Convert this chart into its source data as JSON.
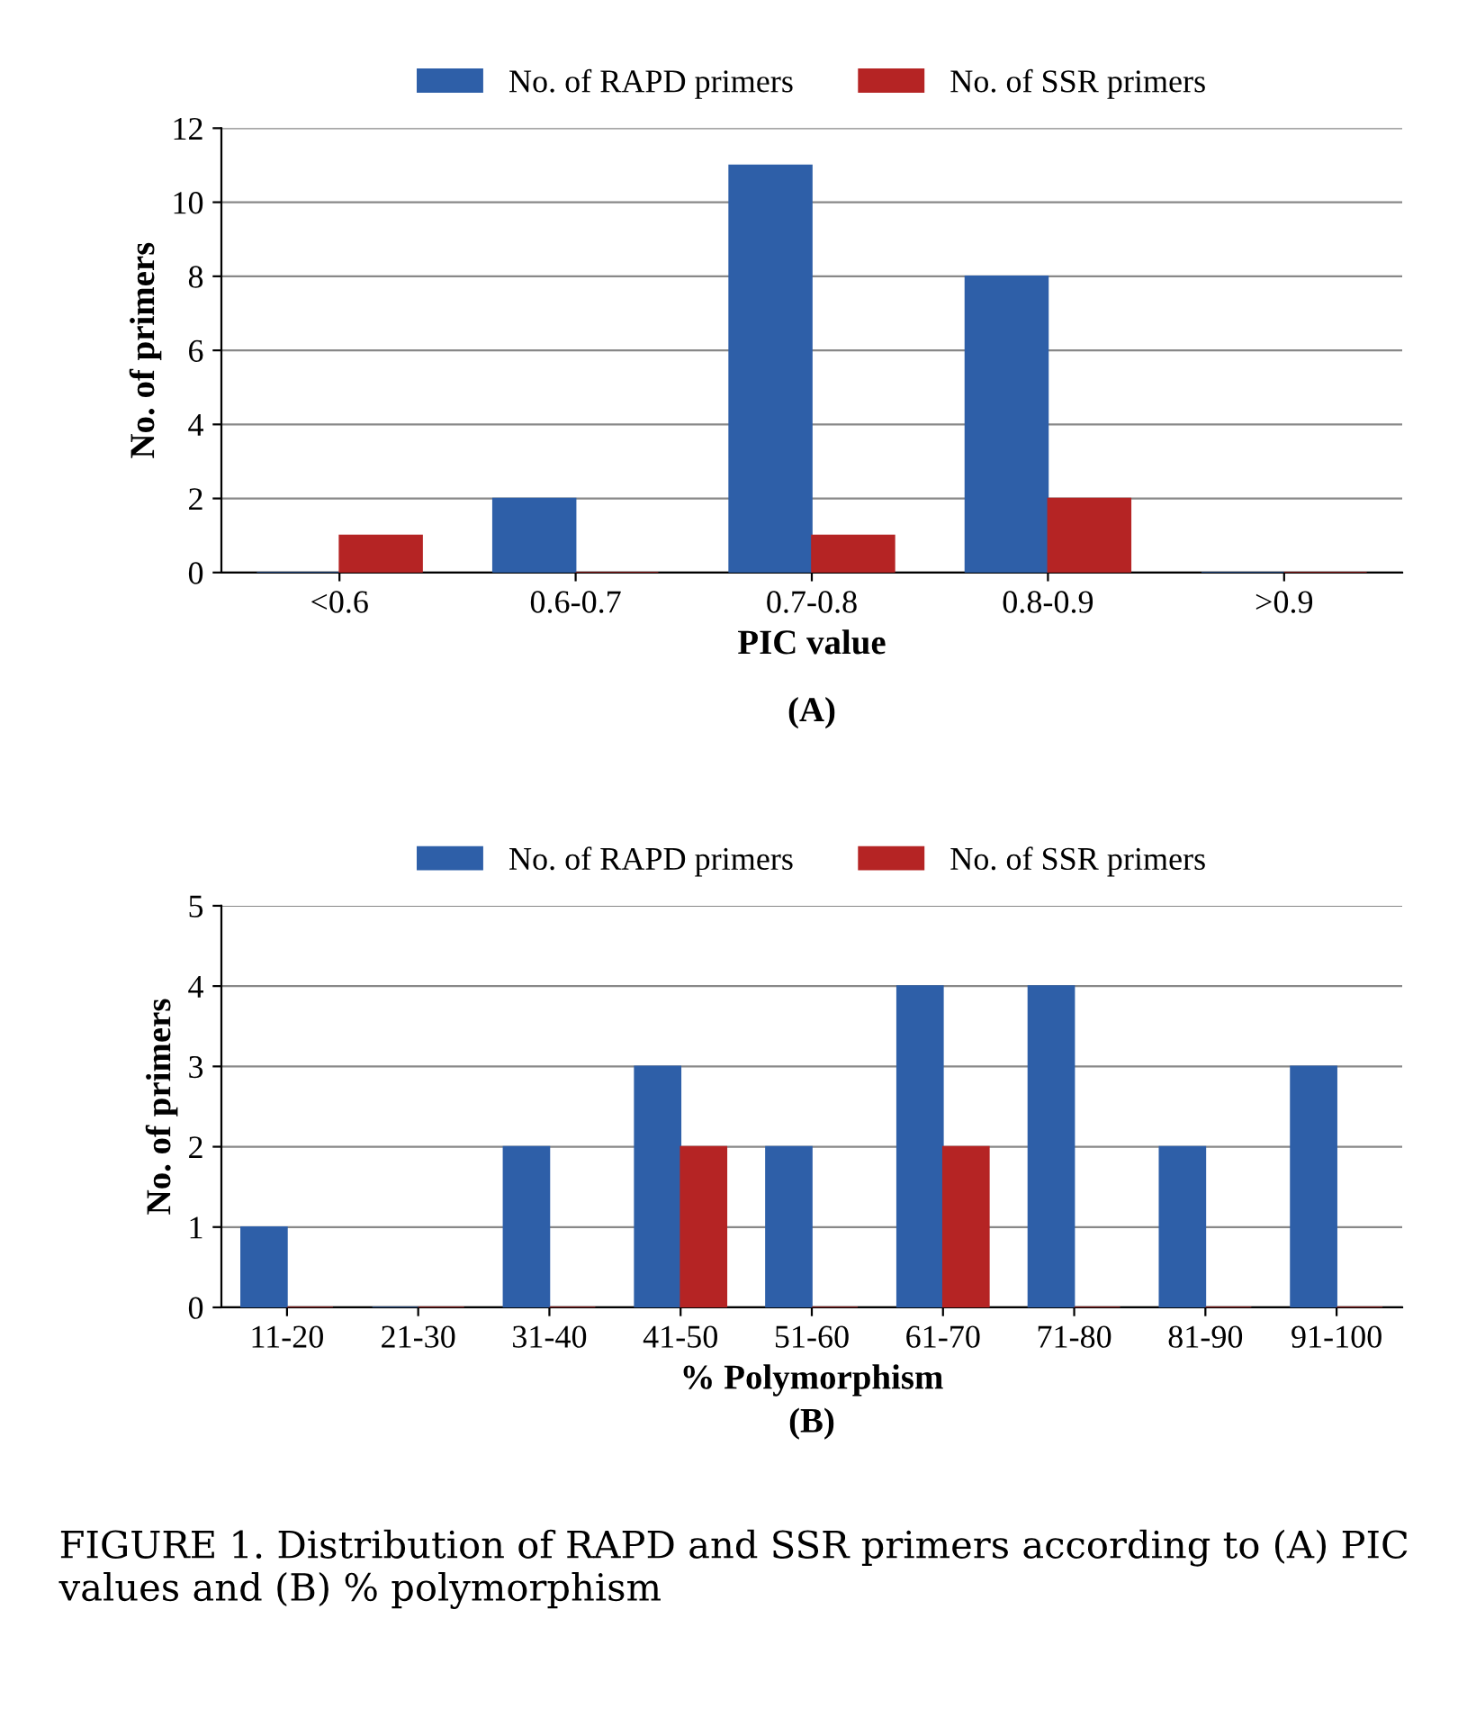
{
  "chart_data": [
    {
      "type": "bar",
      "categories": [
        "<0.6",
        "0.6-0.7",
        "0.7-0.8",
        "0.8-0.9",
        ">0.9"
      ],
      "xlabel": "PIC value",
      "ylabel": "No. of primers",
      "ylim": [
        0,
        12
      ],
      "yticks": [
        0,
        2,
        4,
        6,
        8,
        10,
        12
      ],
      "grid": "y",
      "legend": "top",
      "annotations": [
        "(A)"
      ],
      "series": [
        {
          "name": "No. of RAPD primers",
          "color": "#2e5fa8",
          "values": [
            0,
            2,
            11,
            8,
            0
          ]
        },
        {
          "name": "No. of SSR primers",
          "color": "#b52424",
          "values": [
            1,
            0,
            1,
            2,
            0
          ]
        }
      ]
    },
    {
      "type": "bar",
      "categories": [
        "11-20",
        "21-30",
        "31-40",
        "41-50",
        "51-60",
        "61-70",
        "71-80",
        "81-90",
        "91-100"
      ],
      "xlabel": "% Polymorphism",
      "ylabel": "No. of primers",
      "ylim": [
        0,
        5
      ],
      "yticks": [
        0,
        1,
        2,
        3,
        4,
        5
      ],
      "grid": "y",
      "legend": "top",
      "annotations": [
        "(B)",
        "FIGURE 1. Distribution of RAPD and SSR primers according to (A) PIC values and (B) % polymorphism"
      ],
      "series": [
        {
          "name": "No. of RAPD primers",
          "color": "#2e5fa8",
          "values": [
            1,
            0,
            2,
            3,
            2,
            4,
            4,
            2,
            3
          ]
        },
        {
          "name": "No. of SSR primers",
          "color": "#b52424",
          "values": [
            0,
            0,
            0,
            2,
            0,
            2,
            0,
            0,
            0
          ]
        }
      ]
    }
  ]
}
